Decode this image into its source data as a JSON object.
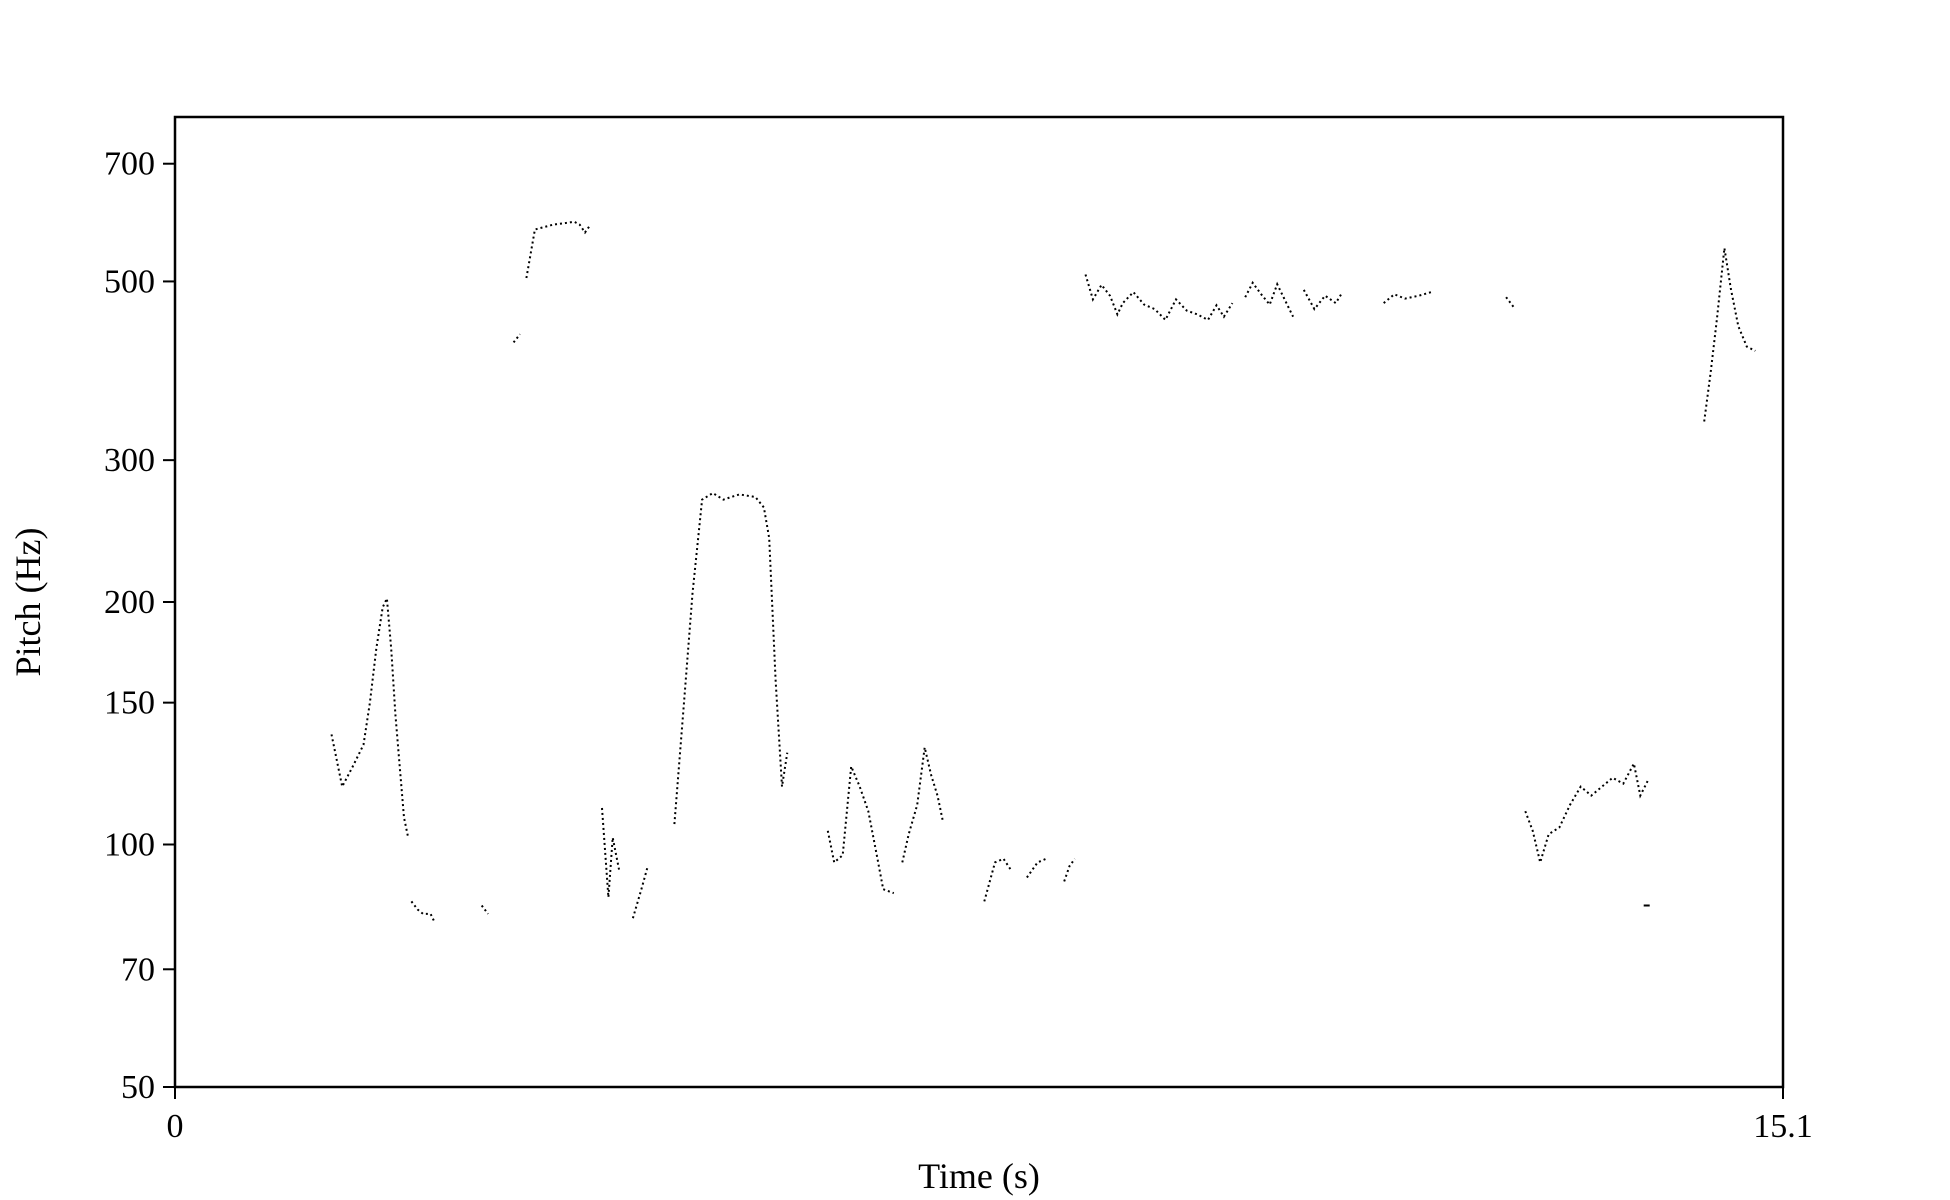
{
  "chart_data": {
    "type": "line",
    "title": "",
    "xlabel": "Time (s)",
    "ylabel": "Pitch (Hz)",
    "xlim": [
      0,
      15.1
    ],
    "ylim": [
      50,
      800
    ],
    "yscale": "log",
    "grid": false,
    "x_tick_labels": [
      "0",
      "15.1"
    ],
    "y_tick_labels": [
      "50",
      "70",
      "100",
      "150",
      "200",
      "300",
      "500",
      "700"
    ],
    "series": [
      {
        "segments": [
          [
            [
              1.47,
              137
            ],
            [
              1.57,
              118
            ],
            [
              1.67,
              125
            ],
            [
              1.77,
              133
            ],
            [
              1.83,
              150
            ],
            [
              1.89,
              175
            ],
            [
              1.95,
              197
            ],
            [
              1.99,
              202
            ],
            [
              2.03,
              175
            ],
            [
              2.07,
              145
            ],
            [
              2.11,
              125
            ],
            [
              2.15,
              108
            ],
            [
              2.19,
              102
            ]
          ],
          [
            [
              2.22,
              85
            ],
            [
              2.28,
              83
            ],
            [
              2.33,
              82
            ],
            [
              2.4,
              82
            ],
            [
              2.44,
              80
            ]
          ],
          [
            [
              2.88,
              84
            ],
            [
              2.94,
              82
            ]
          ],
          [
            [
              3.18,
              420
            ],
            [
              3.24,
              430
            ]
          ],
          [
            [
              3.3,
              505
            ],
            [
              3.38,
              580
            ],
            [
              3.55,
              588
            ],
            [
              3.75,
              593
            ],
            [
              3.8,
              588
            ],
            [
              3.85,
              575
            ],
            [
              3.89,
              585
            ]
          ],
          [
            [
              4.01,
              111
            ],
            [
              4.07,
              86
            ],
            [
              4.11,
              102
            ],
            [
              4.17,
              93
            ]
          ],
          [
            [
              4.3,
              81
            ],
            [
              4.38,
              88
            ],
            [
              4.44,
              94
            ]
          ],
          [
            [
              4.69,
              106
            ],
            [
              4.78,
              150
            ],
            [
              4.86,
              205
            ],
            [
              4.95,
              268
            ],
            [
              5.05,
              273
            ],
            [
              5.15,
              268
            ],
            [
              5.3,
              272
            ],
            [
              5.45,
              270
            ],
            [
              5.53,
              262
            ],
            [
              5.58,
              240
            ],
            [
              5.64,
              160
            ],
            [
              5.7,
              118
            ],
            [
              5.75,
              130
            ]
          ],
          [
            [
              6.13,
              104
            ],
            [
              6.19,
              95
            ],
            [
              6.27,
              97
            ],
            [
              6.35,
              125
            ],
            [
              6.43,
              118
            ],
            [
              6.51,
              110
            ],
            [
              6.59,
              97
            ],
            [
              6.65,
              88
            ],
            [
              6.75,
              87
            ]
          ],
          [
            [
              6.83,
              95
            ],
            [
              6.89,
              103
            ],
            [
              6.97,
              112
            ],
            [
              7.04,
              132
            ],
            [
              7.1,
              122
            ],
            [
              7.16,
              115
            ],
            [
              7.21,
              107
            ]
          ],
          [
            [
              7.6,
              85
            ],
            [
              7.7,
              95
            ],
            [
              7.78,
              96
            ],
            [
              7.85,
              93
            ]
          ],
          [
            [
              8.0,
              91
            ],
            [
              8.1,
              95
            ],
            [
              8.18,
              96
            ]
          ],
          [
            [
              8.35,
              90
            ],
            [
              8.4,
              94
            ],
            [
              8.45,
              96
            ]
          ],
          [
            [
              8.55,
              510
            ],
            [
              8.62,
              475
            ],
            [
              8.7,
              495
            ],
            [
              8.78,
              480
            ],
            [
              8.85,
              455
            ],
            [
              8.9,
              470
            ],
            [
              9.0,
              485
            ],
            [
              9.1,
              468
            ],
            [
              9.2,
              462
            ],
            [
              9.3,
              448
            ],
            [
              9.4,
              475
            ],
            [
              9.5,
              460
            ],
            [
              9.6,
              455
            ],
            [
              9.7,
              448
            ],
            [
              9.78,
              467
            ],
            [
              9.85,
              452
            ],
            [
              9.93,
              470
            ]
          ],
          [
            [
              10.05,
              478
            ],
            [
              10.12,
              498
            ],
            [
              10.2,
              482
            ],
            [
              10.28,
              468
            ],
            [
              10.35,
              496
            ],
            [
              10.42,
              475
            ],
            [
              10.5,
              452
            ]
          ],
          [
            [
              10.6,
              488
            ],
            [
              10.7,
              462
            ],
            [
              10.8,
              480
            ],
            [
              10.9,
              470
            ],
            [
              10.96,
              484
            ]
          ],
          [
            [
              11.35,
              470
            ],
            [
              11.45,
              482
            ],
            [
              11.55,
              476
            ],
            [
              11.68,
              480
            ],
            [
              11.82,
              486
            ]
          ],
          [
            [
              12.5,
              478
            ],
            [
              12.58,
              463
            ]
          ],
          [
            [
              12.68,
              110
            ],
            [
              12.75,
              104
            ],
            [
              12.82,
              95
            ],
            [
              12.9,
              103
            ],
            [
              13.0,
              105
            ],
            [
              13.1,
              112
            ],
            [
              13.2,
              118
            ],
            [
              13.3,
              115
            ],
            [
              13.4,
              118
            ],
            [
              13.5,
              121
            ],
            [
              13.6,
              119
            ],
            [
              13.7,
              126
            ],
            [
              13.76,
              115
            ],
            [
              13.83,
              120
            ]
          ],
          [
            [
              13.82,
              84
            ]
          ],
          [
            [
              14.36,
              335
            ],
            [
              14.42,
              385
            ],
            [
              14.48,
              450
            ],
            [
              14.55,
              550
            ],
            [
              14.61,
              490
            ],
            [
              14.68,
              440
            ],
            [
              14.76,
              415
            ],
            [
              14.84,
              410
            ]
          ]
        ]
      }
    ]
  }
}
